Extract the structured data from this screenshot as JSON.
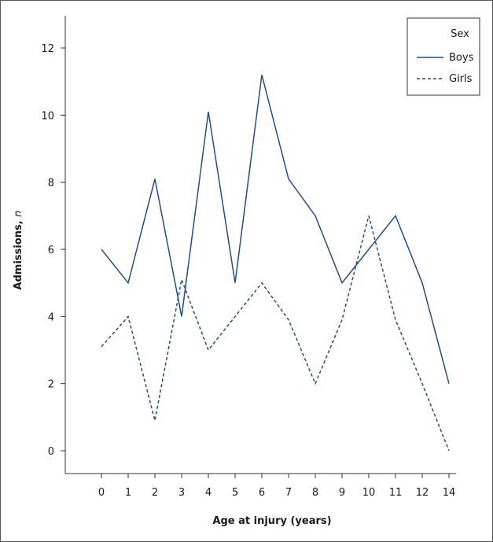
{
  "chart_data": {
    "type": "line",
    "title": "",
    "xlabel": "Age at injury (years)",
    "ylabel": "Admissions, n",
    "ylabel_main": "Admissions, ",
    "ylabel_italic": "n",
    "categories": [
      "0",
      "1",
      "2",
      "3",
      "4",
      "5",
      "6",
      "7",
      "8",
      "9",
      "10",
      "11",
      "12",
      "14"
    ],
    "yticks": [
      0,
      2,
      4,
      6,
      8,
      10,
      12
    ],
    "ylim": [
      -0.7,
      13
    ],
    "series": [
      {
        "name": "Boys",
        "values": [
          6,
          5,
          8.1,
          4,
          10.1,
          5,
          11.2,
          8.1,
          7,
          5,
          6,
          7,
          5,
          2
        ],
        "color": "#1f4e8c",
        "dash": "solid"
      },
      {
        "name": "Girls",
        "values": [
          3.1,
          4,
          0.9,
          5.1,
          3,
          4,
          5,
          3.9,
          2,
          3.9,
          7,
          3.9,
          2,
          0
        ],
        "color": "#1f4e8c",
        "dash": "dashed"
      }
    ],
    "legend": {
      "title": "Sex",
      "placement": "top-right"
    },
    "grid": false
  }
}
